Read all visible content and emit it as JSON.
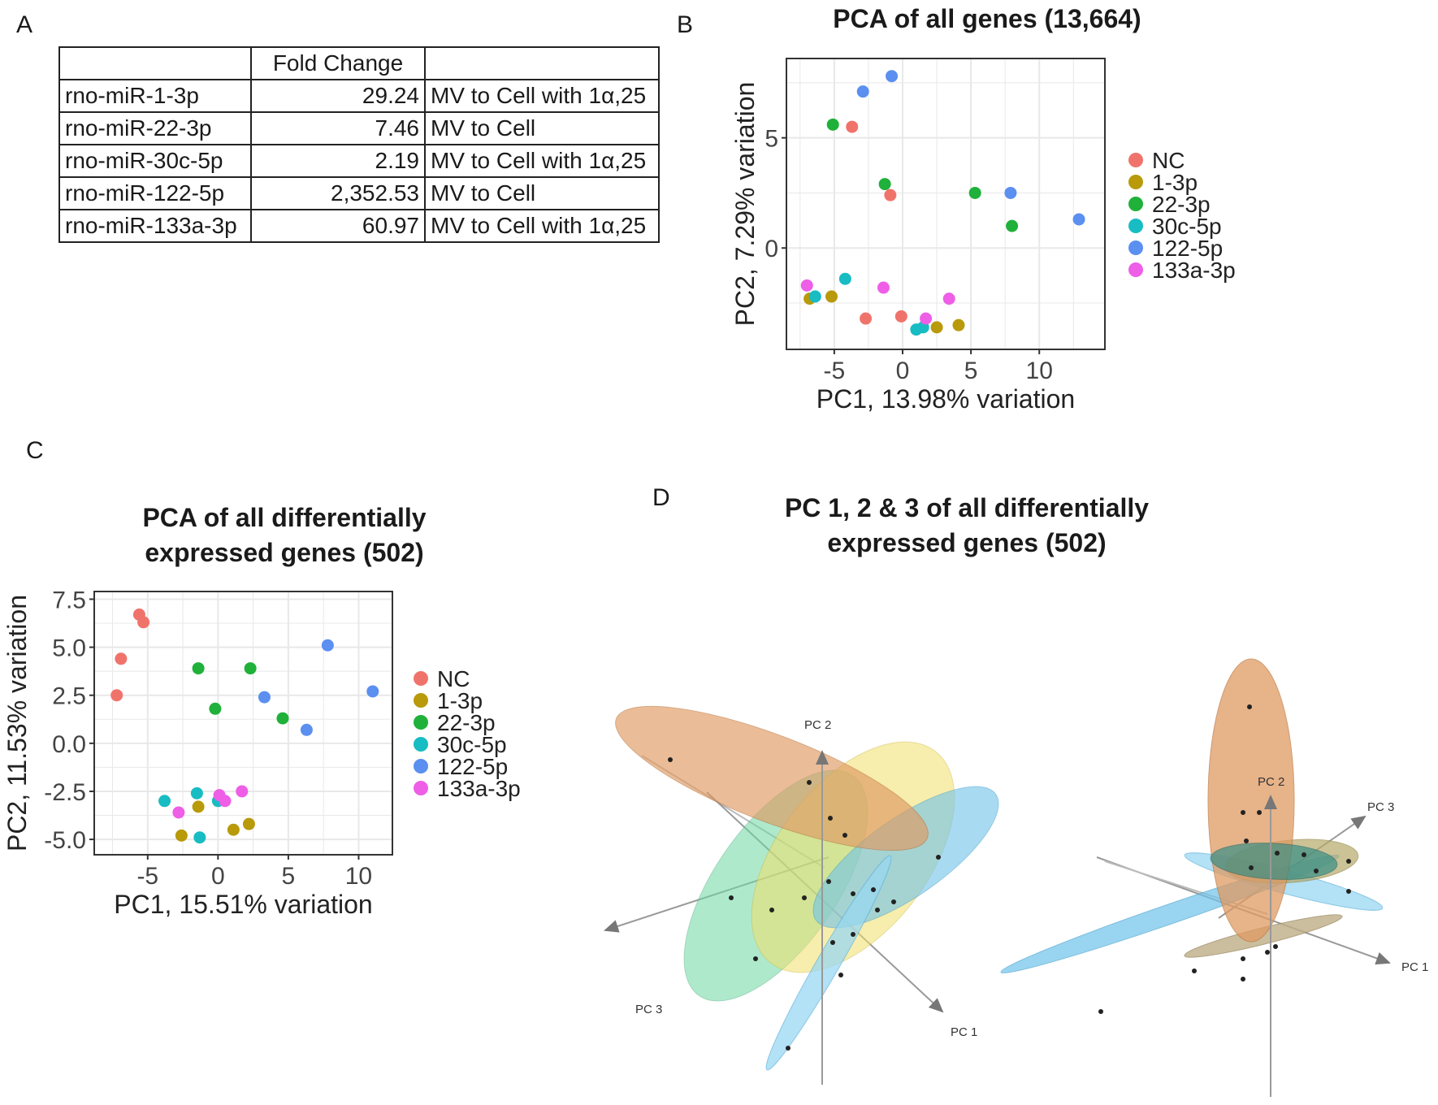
{
  "panels": {
    "a": "A",
    "b": "B",
    "c": "C",
    "d": "D"
  },
  "table": {
    "header": [
      "",
      "Fold Change",
      ""
    ],
    "rows": [
      [
        "rno-miR-1-3p",
        "29.24",
        "MV to Cell with 1α,25"
      ],
      [
        "rno-miR-22-3p",
        "7.46",
        "MV to Cell"
      ],
      [
        "rno-miR-30c-5p",
        "2.19",
        "MV to Cell with 1α,25"
      ],
      [
        "rno-miR-122-5p",
        "2,352.53",
        "MV to Cell"
      ],
      [
        "rno-miR-133a-3p",
        "60.97",
        "MV to Cell with 1α,25"
      ]
    ]
  },
  "colors": {
    "NC": "#f0736b",
    "1-3p": "#b89a0a",
    "22-3p": "#1fb13a",
    "30c-5p": "#18bcc3",
    "122-5p": "#5b8ff0",
    "133a-3p": "#ee5ee6"
  },
  "chart_data": [
    {
      "type": "scatter",
      "title": "PCA of all genes (13,664)",
      "xlabel": "PC1, 13.98% variation",
      "ylabel": "PC2, 7.29% variation",
      "xlim": [
        -8.5,
        14.8
      ],
      "ylim": [
        -4.6,
        8.6
      ],
      "xticks": [
        -5,
        0,
        5,
        10
      ],
      "yticks": [
        0,
        5
      ],
      "grid": true,
      "legend": "right",
      "series": [
        {
          "name": "NC",
          "points": [
            [
              -3.7,
              5.5
            ],
            [
              -0.9,
              2.4
            ],
            [
              -2.7,
              -3.2
            ],
            [
              -0.1,
              -3.1
            ]
          ]
        },
        {
          "name": "1-3p",
          "points": [
            [
              -6.8,
              -2.3
            ],
            [
              -5.2,
              -2.2
            ],
            [
              2.5,
              -3.6
            ],
            [
              4.1,
              -3.5
            ]
          ]
        },
        {
          "name": "22-3p",
          "points": [
            [
              -5.1,
              5.6
            ],
            [
              -1.3,
              2.9
            ],
            [
              5.3,
              2.5
            ],
            [
              8.0,
              1.0
            ]
          ]
        },
        {
          "name": "30c-5p",
          "points": [
            [
              -6.4,
              -2.2
            ],
            [
              -4.2,
              -1.4
            ],
            [
              1.0,
              -3.7
            ],
            [
              1.5,
              -3.6
            ]
          ]
        },
        {
          "name": "122-5p",
          "points": [
            [
              -2.9,
              7.1
            ],
            [
              -0.8,
              7.8
            ],
            [
              7.9,
              2.5
            ],
            [
              12.9,
              1.3
            ]
          ]
        },
        {
          "name": "133a-3p",
          "points": [
            [
              -7.0,
              -1.7
            ],
            [
              -1.4,
              -1.8
            ],
            [
              1.7,
              -3.2
            ],
            [
              3.4,
              -2.3
            ]
          ]
        }
      ]
    },
    {
      "type": "scatter",
      "title": "PCA of all differentially expressed genes (502)",
      "xlabel": "PC1, 15.51% variation",
      "ylabel": "PC2, 11.53% variation",
      "xlim": [
        -8.8,
        12.4
      ],
      "ylim": [
        -5.8,
        7.9
      ],
      "xticks": [
        -5,
        0,
        5,
        10
      ],
      "yticks": [
        -5.0,
        -2.5,
        0.0,
        2.5,
        5.0,
        7.5
      ],
      "grid": true,
      "legend": "right",
      "series": [
        {
          "name": "NC",
          "points": [
            [
              -5.6,
              6.7
            ],
            [
              -5.3,
              6.3
            ],
            [
              -6.9,
              4.4
            ],
            [
              -7.2,
              2.5
            ]
          ]
        },
        {
          "name": "1-3p",
          "points": [
            [
              -1.4,
              -3.3
            ],
            [
              -2.6,
              -4.8
            ],
            [
              1.1,
              -4.5
            ],
            [
              2.2,
              -4.2
            ]
          ]
        },
        {
          "name": "22-3p",
          "points": [
            [
              -1.4,
              3.9
            ],
            [
              2.3,
              3.9
            ],
            [
              -0.2,
              1.8
            ],
            [
              4.6,
              1.3
            ]
          ]
        },
        {
          "name": "30c-5p",
          "points": [
            [
              -3.8,
              -3.0
            ],
            [
              -1.5,
              -2.6
            ],
            [
              0.0,
              -3.0
            ],
            [
              -1.3,
              -4.9
            ]
          ]
        },
        {
          "name": "122-5p",
          "points": [
            [
              7.8,
              5.1
            ],
            [
              3.3,
              2.4
            ],
            [
              6.3,
              0.7
            ],
            [
              11.0,
              2.7
            ]
          ]
        },
        {
          "name": "133a-3p",
          "points": [
            [
              -2.8,
              -3.6
            ],
            [
              0.1,
              -2.7
            ],
            [
              0.5,
              -3.0
            ],
            [
              1.7,
              -2.5
            ]
          ]
        }
      ]
    }
  ],
  "panel_d": {
    "title": "PC 1, 2 & 3 of all differentially expressed genes (502)",
    "axis_labels": {
      "pc1": "PC 1",
      "pc2": "PC 2",
      "pc3": "PC 3"
    },
    "ellipse_colors": {
      "orange": "#e09a62",
      "green": "#6fd8a4",
      "yellow": "#f2e06b",
      "blue": "#6fc3ea",
      "teal": "#2d8c86",
      "olive": "#b6a96a",
      "tan": "#bfae88"
    }
  }
}
